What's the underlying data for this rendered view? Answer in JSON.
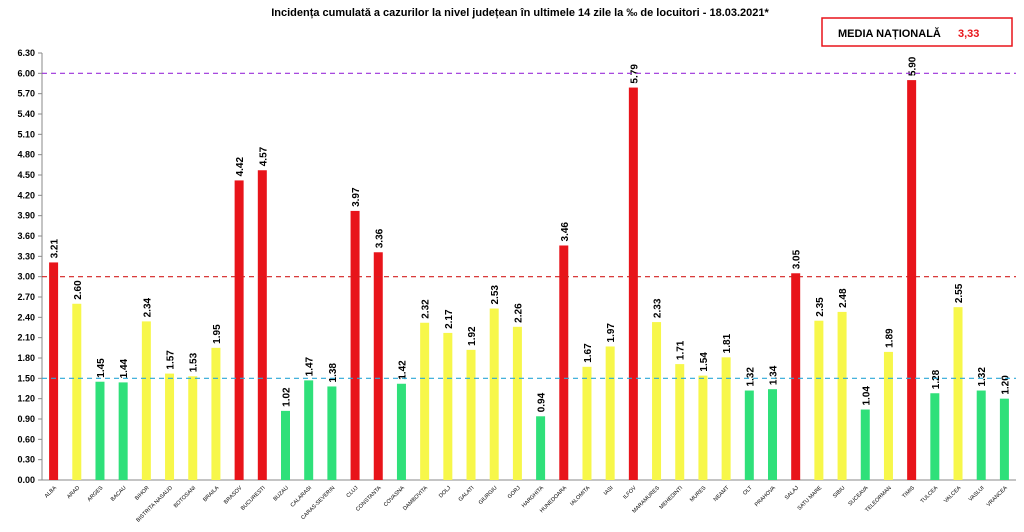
{
  "chart_data": {
    "type": "bar",
    "title": "Incidența cumulată a cazurilor la nivel județean în ultimele 14 zile la ‰ de locuitori - 18.03.2021*",
    "national_average": {
      "label": "MEDIA NAȚIONALĂ",
      "value": "3,33"
    },
    "categories": [
      "ALBA",
      "ARAD",
      "ARGES",
      "BACAU",
      "BIHOR",
      "BISTRITA NASAUD",
      "BOTOSANI",
      "BRAILA",
      "BRASOV",
      "BUCURESTI",
      "BUZAU",
      "CALARASI",
      "CARAS-SEVERIN",
      "CLUJ",
      "CONSTANTA",
      "COVASNA",
      "DAMBOVITA",
      "DOLJ",
      "GALATI",
      "GIURGIU",
      "GORJ",
      "HARGHITA",
      "HUNEDOARA",
      "IALOMITA",
      "IASI",
      "ILFOV",
      "MARAMURES",
      "MEHEDINTI",
      "MURES",
      "NEAMT",
      "OLT",
      "PRAHOVA",
      "SALAJ",
      "SATU MARE",
      "SIBIU",
      "SUCEAVA",
      "TELEORMAN",
      "TIMIS",
      "TULCEA",
      "VALCEA",
      "VASLUI",
      "VRANCEA"
    ],
    "values": [
      3.21,
      2.6,
      1.45,
      1.44,
      2.34,
      1.57,
      1.53,
      1.95,
      4.42,
      4.57,
      1.02,
      1.47,
      1.38,
      3.97,
      3.36,
      1.42,
      2.32,
      2.17,
      1.92,
      2.53,
      2.26,
      0.94,
      3.46,
      1.67,
      1.97,
      5.79,
      2.33,
      1.71,
      1.54,
      1.81,
      1.32,
      1.34,
      3.05,
      2.35,
      2.48,
      1.04,
      1.89,
      5.9,
      1.28,
      2.55,
      1.32,
      1.2
    ],
    "value_labels": [
      "3.21",
      "2.60",
      "1.45",
      "1.44",
      "2.34",
      "1.57",
      "1.53",
      "1.95",
      "4.42",
      "4.57",
      "1.02",
      "1.47",
      "1.38",
      "3.97",
      "3.36",
      "1.42",
      "2.32",
      "2.17",
      "1.92",
      "2.53",
      "2.26",
      "0.94",
      "3.46",
      "1.67",
      "1.97",
      "5.79",
      "2.33",
      "1.71",
      "1.54",
      "1.81",
      "1.32",
      "1.34",
      "3.05",
      "2.35",
      "2.48",
      "1.04",
      "1.89",
      "5.90",
      "1.28",
      "2.55",
      "1.32",
      "1.20"
    ],
    "colors": [
      "#e8141a",
      "#f7f74a",
      "#2fe07a",
      "#2fe07a",
      "#f7f74a",
      "#f7f74a",
      "#f7f74a",
      "#f7f74a",
      "#e8141a",
      "#e8141a",
      "#2fe07a",
      "#2fe07a",
      "#2fe07a",
      "#e8141a",
      "#e8141a",
      "#2fe07a",
      "#f7f74a",
      "#f7f74a",
      "#f7f74a",
      "#f7f74a",
      "#f7f74a",
      "#2fe07a",
      "#e8141a",
      "#f7f74a",
      "#f7f74a",
      "#e8141a",
      "#f7f74a",
      "#f7f74a",
      "#f7f74a",
      "#f7f74a",
      "#2fe07a",
      "#2fe07a",
      "#e8141a",
      "#f7f74a",
      "#f7f74a",
      "#2fe07a",
      "#f7f74a",
      "#e8141a",
      "#2fe07a",
      "#f7f74a",
      "#2fe07a",
      "#2fe07a"
    ],
    "ylim": [
      0,
      6.3
    ],
    "yticks": [
      {
        "value": 0,
        "label": "0.00"
      },
      {
        "value": 0.3,
        "label": "0.30"
      },
      {
        "value": 0.6,
        "label": "0.60"
      },
      {
        "value": 0.9,
        "label": "0.90"
      },
      {
        "value": 1.2,
        "label": "1.20"
      },
      {
        "value": 1.5,
        "label": "1.50"
      },
      {
        "value": 1.8,
        "label": "1.80"
      },
      {
        "value": 2.1,
        "label": "2.10"
      },
      {
        "value": 2.4,
        "label": "2.40"
      },
      {
        "value": 2.7,
        "label": "2.70"
      },
      {
        "value": 3,
        "label": "3.00"
      },
      {
        "value": 3.3,
        "label": "3.30"
      },
      {
        "value": 3.6,
        "label": "3.60"
      },
      {
        "value": 3.9,
        "label": "3.90"
      },
      {
        "value": 4.2,
        "label": "4.20"
      },
      {
        "value": 4.5,
        "label": "4.50"
      },
      {
        "value": 4.8,
        "label": "4.80"
      },
      {
        "value": 5.1,
        "label": "5.10"
      },
      {
        "value": 5.4,
        "label": "5.40"
      },
      {
        "value": 5.7,
        "label": "5.70"
      },
      {
        "value": 6,
        "label": "6.00"
      },
      {
        "value": 6.3,
        "label": "6.30"
      }
    ],
    "reference_lines": [
      {
        "value": 1.5,
        "color": "#2aa8d8"
      },
      {
        "value": 3,
        "color": "#d42020"
      },
      {
        "value": 6,
        "color": "#9b30d9"
      }
    ]
  }
}
